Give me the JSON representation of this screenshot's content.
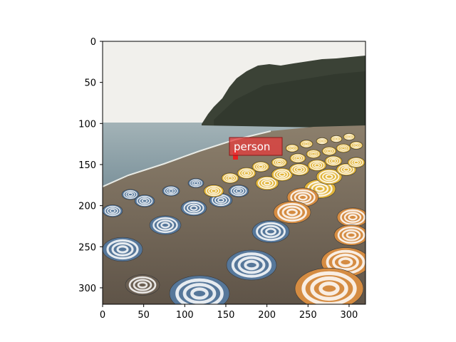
{
  "image": {
    "description_free": true,
    "scene": "beach-with-umbrellas",
    "width_units": 320,
    "height_units": 320
  },
  "axes": {
    "x": {
      "ticks": [
        0,
        50,
        100,
        150,
        200,
        250,
        300
      ],
      "labels": [
        "0",
        "50",
        "100",
        "150",
        "200",
        "250",
        "300"
      ],
      "range": [
        0,
        320
      ]
    },
    "y": {
      "ticks": [
        0,
        50,
        100,
        150,
        200,
        250,
        300
      ],
      "labels": [
        "0",
        "50",
        "100",
        "150",
        "200",
        "250",
        "300"
      ],
      "range": [
        0,
        320
      ]
    }
  },
  "detection": {
    "label": "person",
    "box_color": "#e82020",
    "label_bg": "#e63c3c"
  },
  "colors": {
    "sky": "#f1f0ec",
    "sea": "#8ea3ab",
    "hill": "#3b4236",
    "sand": "#7b6e5e",
    "umbrella_blue": "#56779a",
    "umbrella_yellow": "#e2b53a",
    "umbrella_orange": "#d58c42",
    "stripe": "#ffffff"
  }
}
